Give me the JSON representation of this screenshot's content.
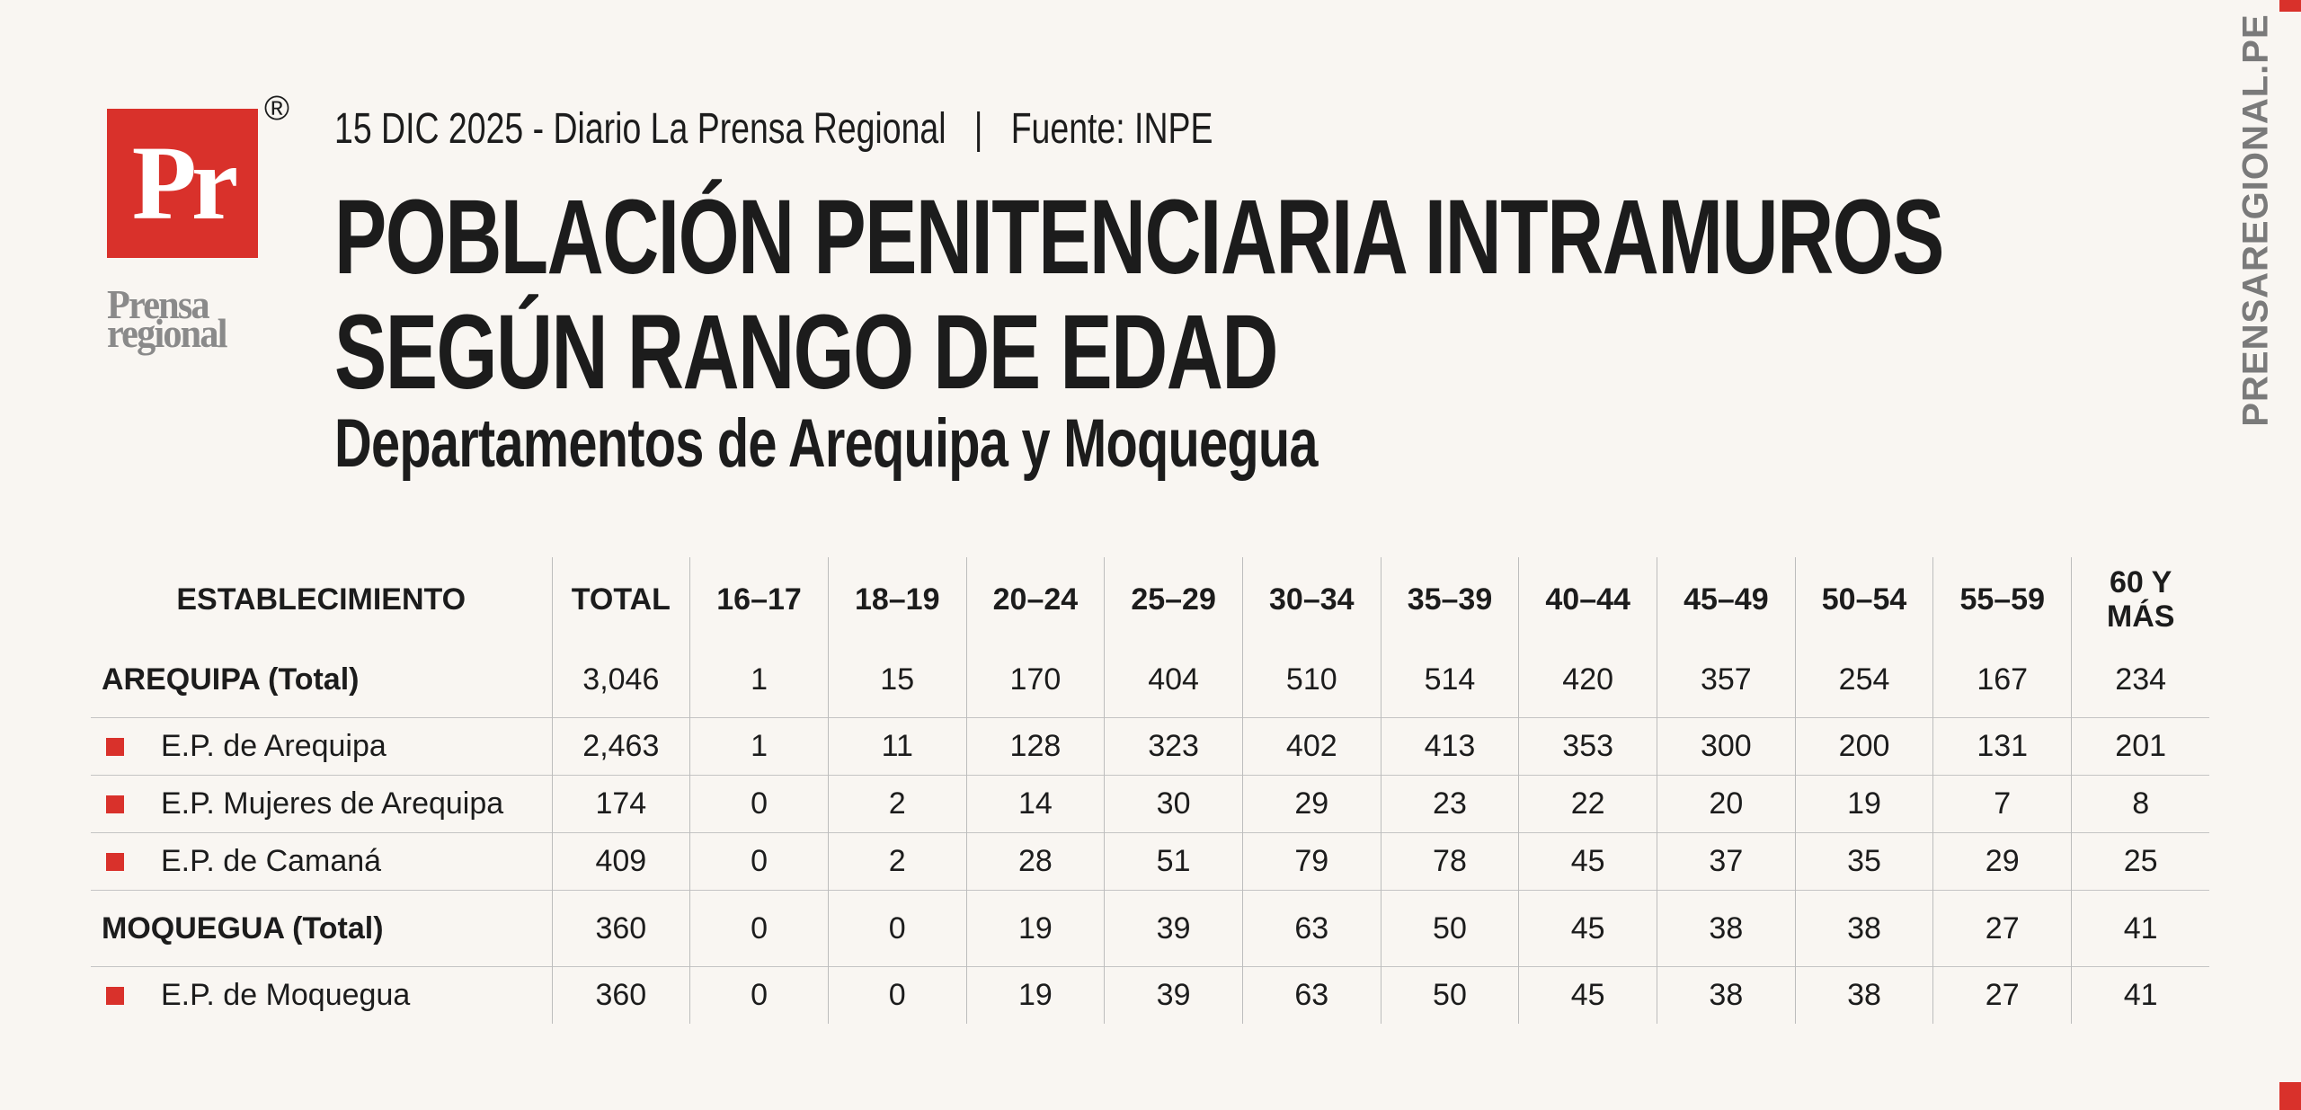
{
  "logo": {
    "mark": "Pr",
    "registered": "®",
    "line1": "Prensa",
    "line2": "regional"
  },
  "header": {
    "date": "15 DIC 2025 - Diario La Prensa Regional",
    "separator": "|",
    "source": "Fuente: INPE",
    "title_line1": "POBLACIÓN PENITENCIARIA INTRAMUROS",
    "title_line2": "SEGÚN RANGO DE EDAD",
    "subtitle": "Departamentos de Arequipa y Moquegua"
  },
  "side_text": "PRENSAREGIONAL.PE",
  "table": {
    "columns": [
      "ESTABLECIMIENTO",
      "TOTAL",
      "16–17",
      "18–19",
      "20–24",
      "25–29",
      "30–34",
      "35–39",
      "40–44",
      "45–49",
      "50–54",
      "55–59",
      "60 Y MÁS"
    ],
    "groups": [
      {
        "name": "AREQUIPA (Total)",
        "values": [
          "3,046",
          "1",
          "15",
          "170",
          "404",
          "510",
          "514",
          "420",
          "357",
          "254",
          "167",
          "234"
        ],
        "establishments": [
          {
            "name": "E.P. de Arequipa",
            "values": [
              "2,463",
              "1",
              "11",
              "128",
              "323",
              "402",
              "413",
              "353",
              "300",
              "200",
              "131",
              "201"
            ]
          },
          {
            "name": "E.P. Mujeres de Arequipa",
            "values": [
              "174",
              "0",
              "2",
              "14",
              "30",
              "29",
              "23",
              "22",
              "20",
              "19",
              "7",
              "8"
            ]
          },
          {
            "name": "E.P. de Camaná",
            "values": [
              "409",
              "0",
              "2",
              "28",
              "51",
              "79",
              "78",
              "45",
              "37",
              "35",
              "29",
              "25"
            ]
          }
        ]
      },
      {
        "name": "MOQUEGUA (Total)",
        "values": [
          "360",
          "0",
          "0",
          "19",
          "39",
          "63",
          "50",
          "45",
          "38",
          "38",
          "27",
          "41"
        ],
        "establishments": [
          {
            "name": "E.P. de Moquegua",
            "values": [
              "360",
              "0",
              "0",
              "19",
              "39",
              "63",
              "50",
              "45",
              "38",
              "38",
              "27",
              "41"
            ]
          }
        ]
      }
    ]
  }
}
